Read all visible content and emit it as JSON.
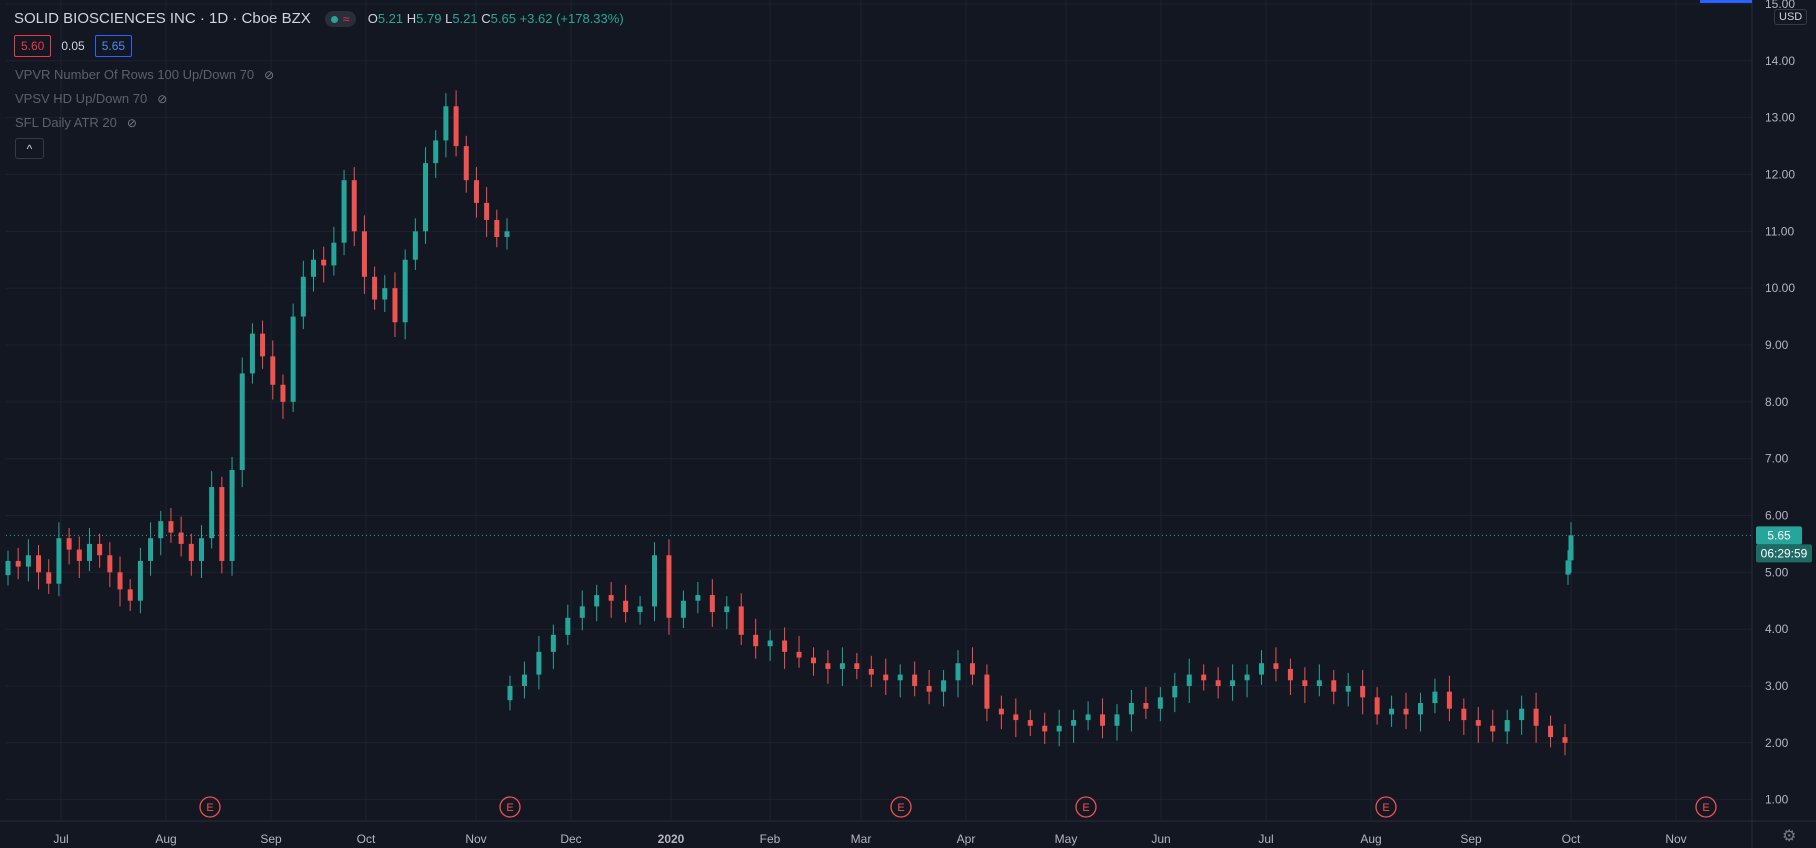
{
  "header": {
    "symbol": "SOLID BIOSCIENCES INC · 1D · Cboe BZX",
    "ohlc": {
      "o_label": "O",
      "o": "5.21",
      "h_label": "H",
      "h": "5.79",
      "l_label": "L",
      "l": "5.21",
      "c_label": "C",
      "c": "5.65",
      "change": "+3.62 (+178.33%)"
    }
  },
  "quote": {
    "bid": "5.60",
    "spread": "0.05",
    "ask": "5.65"
  },
  "indicators": [
    {
      "label": "VPVR Number Of Rows 100 Up/Down 70"
    },
    {
      "label": "VPSV HD Up/Down 70"
    },
    {
      "label": "SFL Daily ATR 20"
    }
  ],
  "price_axis": {
    "currency": "USD",
    "ticks": [
      "15.00",
      "14.00",
      "13.00",
      "12.00",
      "11.00",
      "10.00",
      "9.00",
      "8.00",
      "7.00",
      "6.00",
      "5.00",
      "4.00",
      "3.00",
      "2.00",
      "1.00"
    ],
    "last_price": "5.65",
    "countdown": "06:29:59"
  },
  "time_axis": {
    "labels": [
      "Jul",
      "Aug",
      "Sep",
      "Oct",
      "Nov",
      "Dec",
      "2020",
      "Feb",
      "Mar",
      "Apr",
      "May",
      "Jun",
      "Jul",
      "Aug",
      "Sep",
      "Oct",
      "Nov"
    ]
  },
  "earnings_markers": [
    "E",
    "E",
    "E",
    "E",
    "E",
    "E"
  ],
  "colors": {
    "up": "#26a69a",
    "down": "#ef5350",
    "background": "#131722",
    "grid": "#1e222d"
  },
  "chart_data": {
    "type": "candlestick",
    "ylim": [
      0.8,
      15.0
    ],
    "segments": [
      {
        "from": "Jun",
        "to": "Nov",
        "points": [
          5.2,
          5.1,
          5.3,
          5.0,
          4.8,
          5.6,
          5.4,
          5.2,
          5.5,
          5.3,
          5.0,
          4.7,
          4.5,
          5.2,
          5.6,
          5.9,
          5.7,
          5.5,
          5.2,
          5.6,
          6.5,
          5.2,
          6.8,
          8.5,
          9.2,
          8.8,
          8.3,
          8.0,
          9.5,
          10.2,
          10.5,
          10.4,
          10.8,
          11.9,
          11.0,
          10.2,
          9.8,
          10.0,
          9.4,
          10.5,
          11.0,
          12.2,
          12.6,
          13.2,
          12.5,
          11.9,
          11.5,
          11.2,
          10.9,
          11.0
        ]
      },
      {
        "from": "Nov",
        "to": "Sep",
        "points": [
          3.0,
          3.2,
          3.6,
          3.9,
          4.2,
          4.4,
          4.6,
          4.5,
          4.3,
          4.4,
          5.3,
          4.2,
          4.5,
          4.6,
          4.3,
          4.4,
          3.9,
          3.7,
          3.8,
          3.6,
          3.5,
          3.4,
          3.3,
          3.4,
          3.3,
          3.2,
          3.1,
          3.2,
          3.0,
          2.9,
          3.1,
          3.4,
          3.2,
          2.6,
          2.5,
          2.4,
          2.3,
          2.2,
          2.3,
          2.4,
          2.5,
          2.3,
          2.5,
          2.7,
          2.6,
          2.8,
          3.0,
          3.2,
          3.1,
          3.0,
          3.1,
          3.2,
          3.4,
          3.3,
          3.1,
          3.0,
          3.1,
          2.9,
          3.0,
          2.8,
          2.5,
          2.6,
          2.5,
          2.7,
          2.9,
          2.6,
          2.4,
          2.3,
          2.2,
          2.4,
          2.6,
          2.3,
          2.1,
          2.0
        ]
      },
      {
        "from": "Oct",
        "to": "Oct",
        "points": [
          5.21,
          5.65
        ]
      }
    ]
  }
}
